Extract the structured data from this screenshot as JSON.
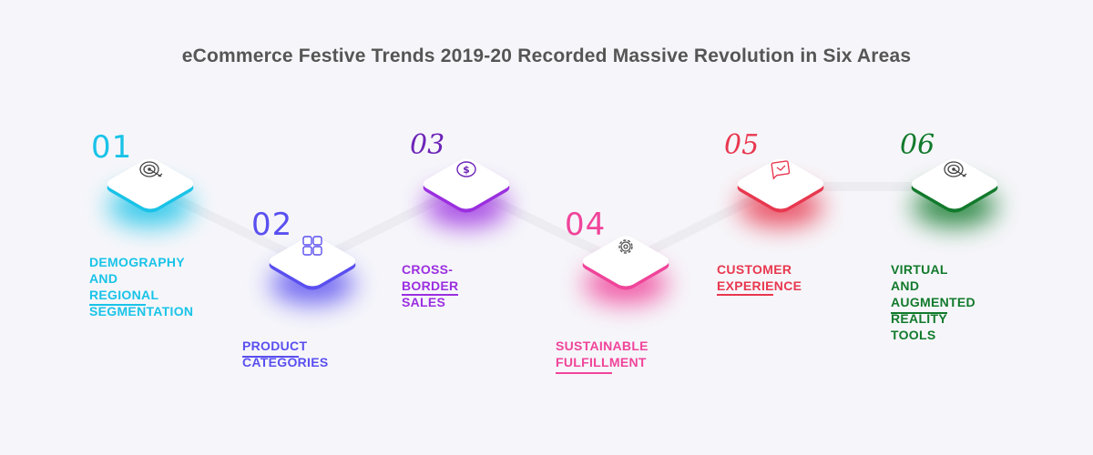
{
  "title": "eCommerce Festive Trends 2019-20 Recorded Massive Revolution in Six Areas",
  "steps": [
    {
      "number": "01",
      "lines": [
        "DEMOGRAPHY AND",
        "REGIONAL",
        "SEGMENTATION"
      ],
      "color": "#19c3e8",
      "icon": "target-icon"
    },
    {
      "number": "02",
      "lines": [
        "PRODUCT CATEGORIES"
      ],
      "color": "#5a4ff0",
      "icon": "grid-icon"
    },
    {
      "number": "03",
      "lines": [
        "CROSS-BORDER",
        "SALES"
      ],
      "color": "#9b2fe0",
      "icon": "dollar-coin-icon"
    },
    {
      "number": "04",
      "lines": [
        "SUSTAINABLE",
        "FULFILLMENT"
      ],
      "color": "#f0449a",
      "icon": "gear-icon"
    },
    {
      "number": "05",
      "lines": [
        "CUSTOMER",
        "EXPERIENCE"
      ],
      "color": "#e8384f",
      "icon": "chat-bubble-icon"
    },
    {
      "number": "06",
      "lines": [
        "VIRTUAL AND",
        "AUGMENTED",
        "REALITY TOOLS"
      ],
      "color": "#127a2c",
      "icon": "target-icon"
    }
  ]
}
